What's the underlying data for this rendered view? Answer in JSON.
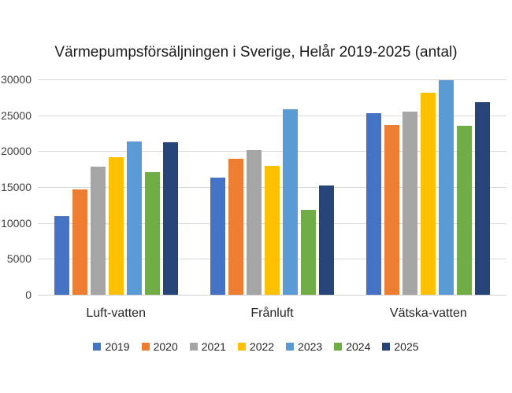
{
  "chart_data": {
    "type": "bar",
    "title": "Värmepumpsförsäljningen i Sverige, Helår 2019-2025 (antal)",
    "categories": [
      "Luft-vatten",
      "Frånluft",
      "Vätska-vatten"
    ],
    "series": [
      {
        "name": "2019",
        "color": "#4472C4",
        "values": [
          11000,
          16300,
          25300
        ]
      },
      {
        "name": "2020",
        "color": "#ED7D31",
        "values": [
          14700,
          18900,
          23700
        ]
      },
      {
        "name": "2021",
        "color": "#A5A5A5",
        "values": [
          17800,
          20100,
          25500
        ]
      },
      {
        "name": "2022",
        "color": "#FFC000",
        "values": [
          19200,
          18000,
          28100
        ]
      },
      {
        "name": "2023",
        "color": "#5B9BD5",
        "values": [
          21300,
          25800,
          29900
        ]
      },
      {
        "name": "2024",
        "color": "#70AD47",
        "values": [
          17100,
          11800,
          23500
        ]
      },
      {
        "name": "2025",
        "color": "#264478",
        "values": [
          21200,
          15200,
          26800
        ]
      }
    ],
    "xlabel": "",
    "ylabel": "",
    "ylim": [
      0,
      30000
    ],
    "ytick_interval": 5000,
    "yticks": [
      "0",
      "5000",
      "10000",
      "15000",
      "20000",
      "25000",
      "30000"
    ],
    "grid": true,
    "legend_position": "bottom"
  },
  "colors": {
    "gridline": "#D9D9D9",
    "baseline": "#D0D0D0",
    "axis_text": "#404040",
    "category_text": "#262626",
    "title_text": "#1a1a1a",
    "background": "#FFFFFF"
  }
}
